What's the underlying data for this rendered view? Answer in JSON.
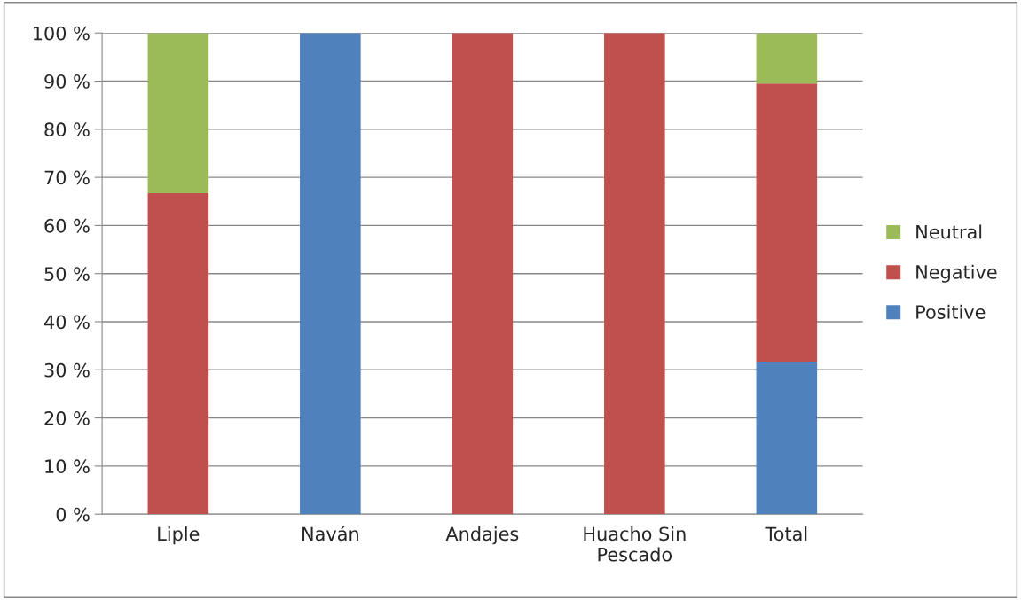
{
  "chart_data": {
    "type": "bar",
    "stacked": true,
    "categories": [
      "Liple",
      "Naván",
      "Andajes",
      "Huacho Sin\nPescado",
      "Total"
    ],
    "series": [
      {
        "name": "Positive",
        "color": "#4f81bd",
        "values": [
          null,
          100,
          null,
          null,
          31.6
        ]
      },
      {
        "name": "Negative",
        "color": "#c0504d",
        "values": [
          66.7,
          null,
          100,
          100,
          57.9
        ]
      },
      {
        "name": "Neutral",
        "color": "#9bbb59",
        "values": [
          33.3,
          null,
          null,
          null,
          10.5
        ]
      }
    ],
    "ylim": [
      0,
      100
    ],
    "yticks": [
      {
        "value": 0,
        "label": "0 %"
      },
      {
        "value": 10,
        "label": "10 %"
      },
      {
        "value": 20,
        "label": "20 %"
      },
      {
        "value": 30,
        "label": "30 %"
      },
      {
        "value": 40,
        "label": "40 %"
      },
      {
        "value": 50,
        "label": "50 %"
      },
      {
        "value": 60,
        "label": "60 %"
      },
      {
        "value": 70,
        "label": "70 %"
      },
      {
        "value": 80,
        "label": "80 %"
      },
      {
        "value": 90,
        "label": "90 %"
      },
      {
        "value": 100,
        "label": "100 %"
      }
    ],
    "grid": "y",
    "legend": "right"
  }
}
